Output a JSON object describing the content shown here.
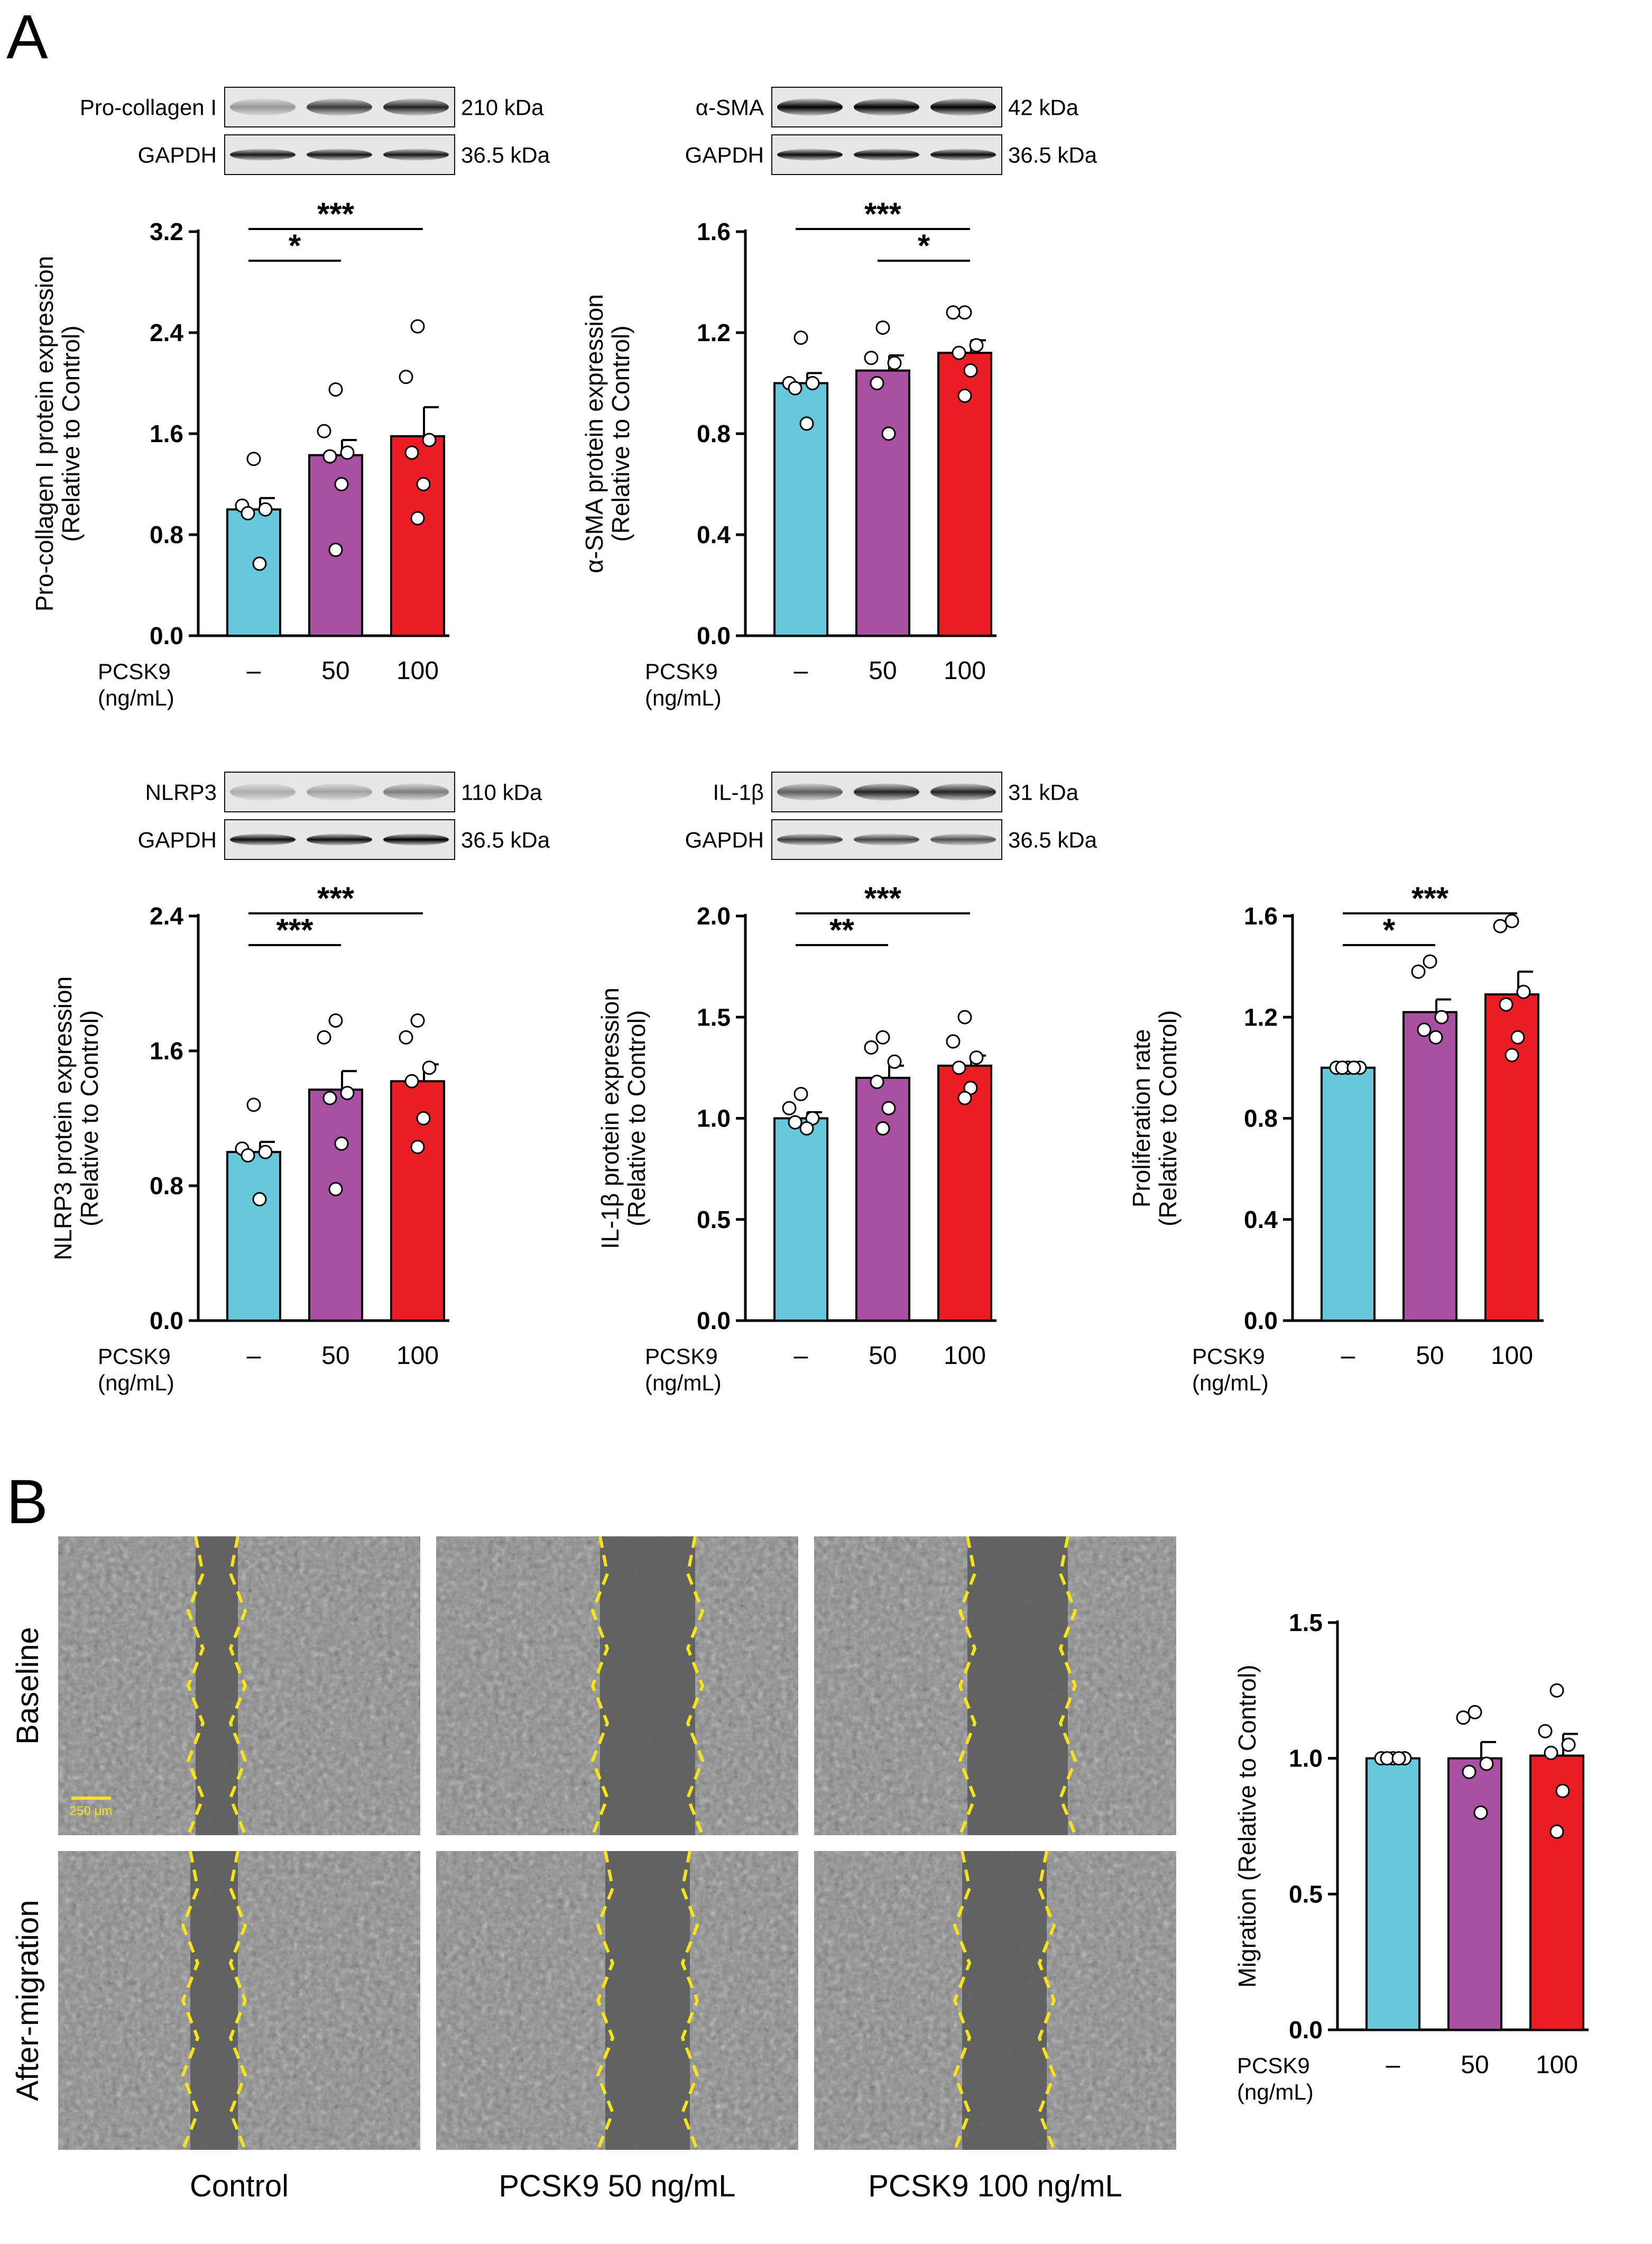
{
  "figure": {
    "panel_a_letter": "A",
    "panel_b_letter": "B",
    "pcsk9_label": "PCSK9",
    "pcsk9_unit": "(ng/mL)",
    "dose_labels": [
      "–",
      "50",
      "100"
    ]
  },
  "colors": {
    "control": "#67c8dc",
    "dose50": "#a84fa1",
    "dose100": "#ec1c24"
  },
  "blots": [
    {
      "protein": "Pro-collagen I",
      "protein_kda": "210 kDa",
      "loading": "GAPDH",
      "loading_kda": "36.5 kDa"
    },
    {
      "protein": "α-SMA",
      "protein_kda": "42 kDa",
      "loading": "GAPDH",
      "loading_kda": "36.5 kDa"
    },
    {
      "protein": "NLRP3",
      "protein_kda": "110 kDa",
      "loading": "GAPDH",
      "loading_kda": "36.5 kDa"
    },
    {
      "protein": "IL-1β",
      "protein_kda": "31 kDa",
      "loading": "GAPDH",
      "loading_kda": "36.5 kDa"
    }
  ],
  "scratch": {
    "row_labels": [
      "Baseline",
      "After-migration"
    ],
    "column_labels": [
      "Control",
      "PCSK9 50 ng/mL",
      "PCSK9 100 ng/mL"
    ],
    "scale_bar_label": "250 μm"
  },
  "chart_data": [
    {
      "id": "procollagen",
      "type": "bar",
      "ylabel_line1": "Pro-collagen I protein expression",
      "ylabel_line2": "(Relative to Control)",
      "ylim": [
        0,
        3.2
      ],
      "yticks": [
        "0.0",
        "0.8",
        "1.6",
        "2.4",
        "3.2"
      ],
      "categories": [
        "–",
        "50",
        "100"
      ],
      "values": [
        1.0,
        1.43,
        1.58
      ],
      "sem": [
        0.09,
        0.12,
        0.23
      ],
      "points": [
        [
          1.4,
          1.03,
          1.0,
          0.97,
          0.57
        ],
        [
          1.95,
          1.62,
          1.45,
          1.42,
          1.2,
          0.68
        ],
        [
          2.45,
          2.05,
          1.55,
          1.45,
          1.2,
          0.93
        ]
      ],
      "significance": [
        {
          "from": 0,
          "to": 1,
          "label": "*"
        },
        {
          "from": 0,
          "to": 2,
          "label": "***"
        }
      ]
    },
    {
      "id": "asma",
      "type": "bar",
      "ylabel_line1": "α-SMA protein expression",
      "ylabel_line2": "(Relative to Control)",
      "ylim": [
        0,
        1.6
      ],
      "yticks": [
        "0.0",
        "0.4",
        "0.8",
        "1.2",
        "1.6"
      ],
      "categories": [
        "–",
        "50",
        "100"
      ],
      "values": [
        1.0,
        1.05,
        1.12
      ],
      "sem": [
        0.04,
        0.06,
        0.05
      ],
      "points": [
        [
          1.18,
          1.0,
          1.0,
          0.98,
          0.84
        ],
        [
          1.22,
          1.1,
          1.08,
          1.0,
          0.8
        ],
        [
          1.28,
          1.28,
          1.15,
          1.12,
          1.05,
          0.95
        ]
      ],
      "significance": [
        {
          "from": 1,
          "to": 2,
          "label": "*"
        },
        {
          "from": 0,
          "to": 2,
          "label": "***"
        }
      ]
    },
    {
      "id": "nlrp3",
      "type": "bar",
      "ylabel_line1": "NLRP3 protein expression",
      "ylabel_line2": "(Relative to Control)",
      "ylim": [
        0,
        2.4
      ],
      "yticks": [
        "0.0",
        "0.8",
        "1.6",
        "2.4"
      ],
      "categories": [
        "–",
        "50",
        "100"
      ],
      "values": [
        1.0,
        1.37,
        1.42
      ],
      "sem": [
        0.06,
        0.11,
        0.1
      ],
      "points": [
        [
          1.28,
          1.02,
          1.0,
          0.98,
          0.72
        ],
        [
          1.78,
          1.68,
          1.35,
          1.32,
          1.05,
          0.78
        ],
        [
          1.78,
          1.68,
          1.5,
          1.42,
          1.2,
          1.03
        ]
      ],
      "significance": [
        {
          "from": 0,
          "to": 1,
          "label": "***"
        },
        {
          "from": 0,
          "to": 2,
          "label": "***"
        }
      ]
    },
    {
      "id": "il1b",
      "type": "bar",
      "ylabel_line1": "IL-1β protein expression",
      "ylabel_line2": "(Relative to Control)",
      "ylim": [
        0,
        2.0
      ],
      "yticks": [
        "0.0",
        "0.5",
        "1.0",
        "1.5",
        "2.0"
      ],
      "categories": [
        "–",
        "50",
        "100"
      ],
      "values": [
        1.0,
        1.2,
        1.26
      ],
      "sem": [
        0.03,
        0.06,
        0.05
      ],
      "points": [
        [
          1.12,
          1.05,
          1.0,
          0.98,
          0.95
        ],
        [
          1.4,
          1.35,
          1.28,
          1.18,
          1.05,
          0.95
        ],
        [
          1.5,
          1.38,
          1.3,
          1.25,
          1.15,
          1.1
        ]
      ],
      "significance": [
        {
          "from": 0,
          "to": 1,
          "label": "**"
        },
        {
          "from": 0,
          "to": 2,
          "label": "***"
        }
      ]
    },
    {
      "id": "proliferation",
      "type": "bar",
      "ylabel_line1": "Proliferation rate",
      "ylabel_line2": "(Relative to Control)",
      "ylim": [
        0,
        1.6
      ],
      "yticks": [
        "0.0",
        "0.4",
        "0.8",
        "1.2",
        "1.6"
      ],
      "categories": [
        "–",
        "50",
        "100"
      ],
      "values": [
        1.0,
        1.22,
        1.29
      ],
      "sem": [
        0.0,
        0.05,
        0.09
      ],
      "points": [
        [
          1.0,
          1.0,
          1.0,
          1.0,
          1.0
        ],
        [
          1.42,
          1.38,
          1.2,
          1.15,
          1.12
        ],
        [
          1.58,
          1.56,
          1.3,
          1.25,
          1.12,
          1.05
        ]
      ],
      "significance": [
        {
          "from": 0,
          "to": 1,
          "label": "*"
        },
        {
          "from": 0,
          "to": 2,
          "label": "***"
        }
      ]
    },
    {
      "id": "migration",
      "type": "bar",
      "ylabel_line1": "Migration (Relative to Control)",
      "ylabel_line2": "",
      "ylim": [
        0,
        1.5
      ],
      "yticks": [
        "0.0",
        "0.5",
        "1.0",
        "1.5"
      ],
      "categories": [
        "–",
        "50",
        "100"
      ],
      "values": [
        1.0,
        1.0,
        1.01
      ],
      "sem": [
        0.0,
        0.06,
        0.08
      ],
      "points": [
        [
          1.0,
          1.0,
          1.0,
          1.0,
          1.0
        ],
        [
          1.17,
          1.15,
          0.98,
          0.95,
          0.8
        ],
        [
          1.25,
          1.1,
          1.05,
          1.02,
          0.88,
          0.73
        ]
      ],
      "significance": []
    }
  ]
}
